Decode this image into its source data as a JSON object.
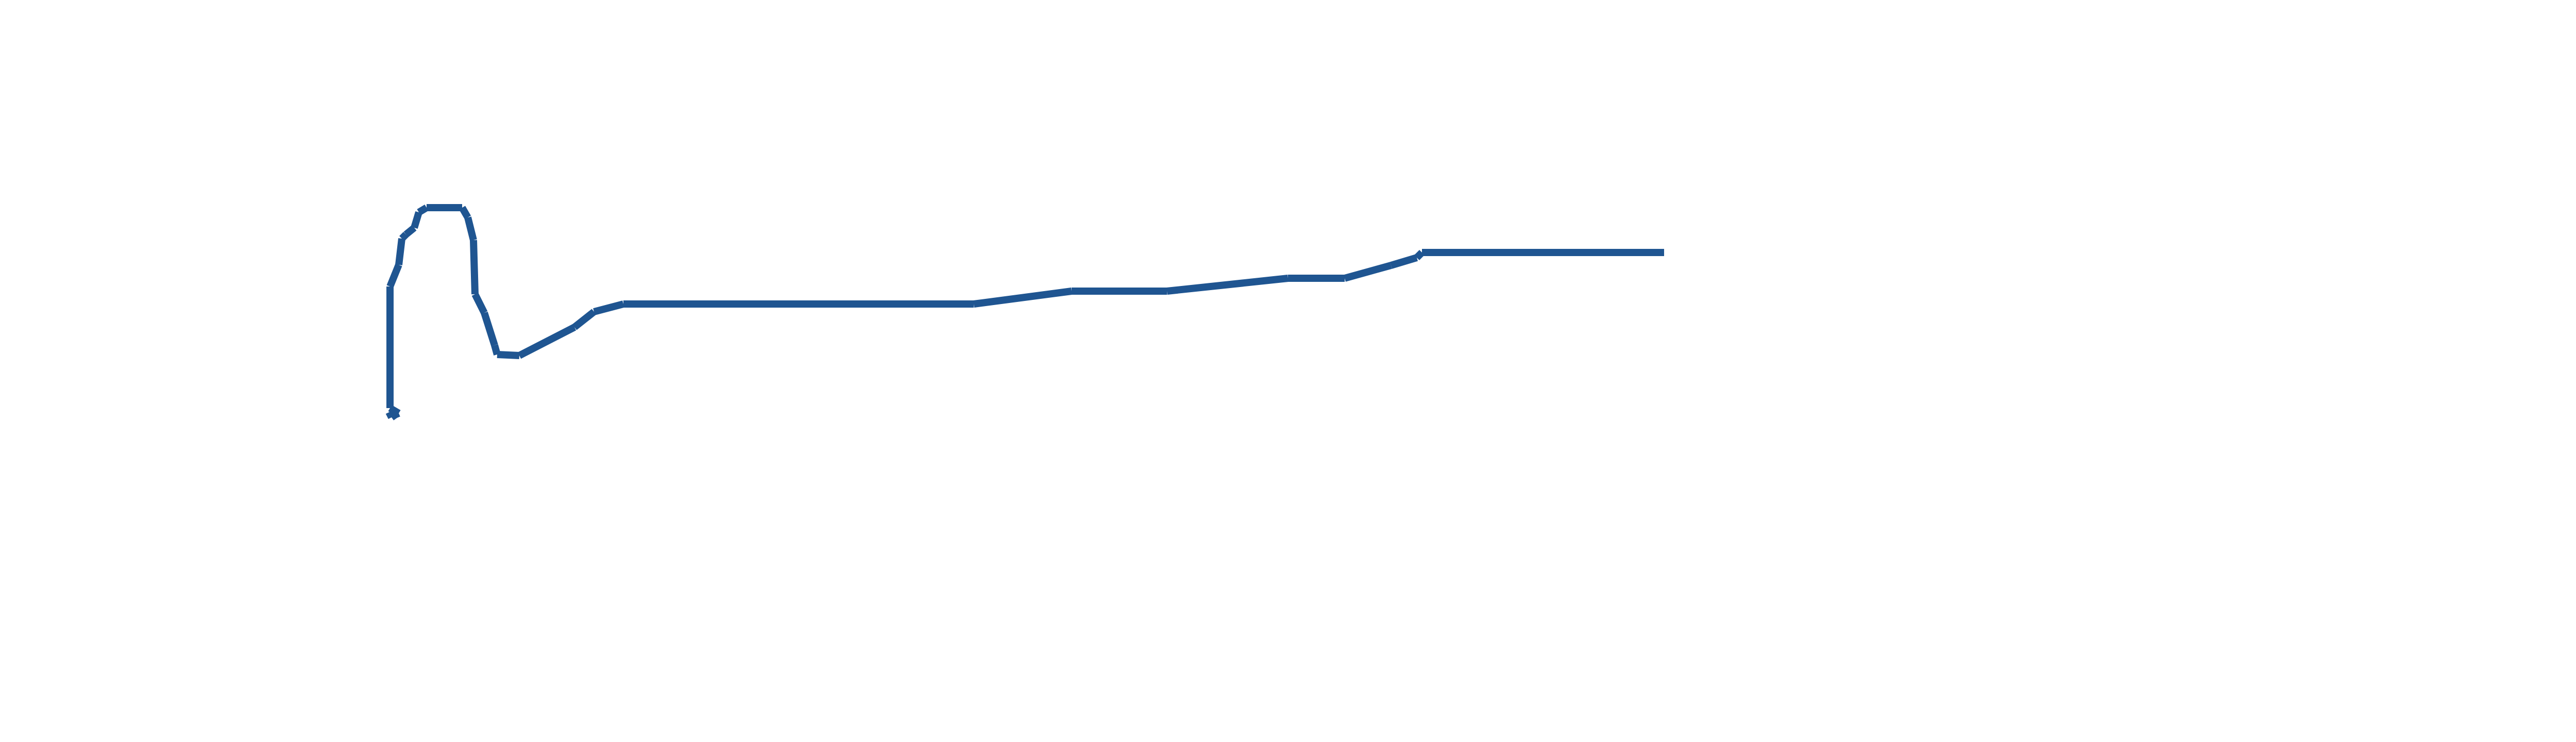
{
  "chart_data": {
    "type": "line",
    "title": "",
    "xlabel": "",
    "ylabel": "",
    "grid": false,
    "axes_visible": false,
    "legend": "none",
    "xlim": [
      745,
      3240
    ],
    "ylim": [
      0,
      1440
    ],
    "series": [
      {
        "color": "#1f5591",
        "points": [
          [
            755,
            800
          ],
          [
            760,
            810
          ],
          [
            767,
            805
          ],
          [
            774,
            802
          ],
          [
            757,
            792
          ],
          [
            757,
            556
          ],
          [
            774,
            514
          ],
          [
            780,
            463
          ],
          [
            788,
            455
          ],
          [
            804,
            442
          ],
          [
            813,
            412
          ],
          [
            828,
            403
          ],
          [
            897,
            403
          ],
          [
            908,
            422
          ],
          [
            919,
            466
          ],
          [
            922,
            571
          ],
          [
            940,
            607
          ],
          [
            960,
            670
          ],
          [
            965,
            688
          ],
          [
            1008,
            690
          ],
          [
            1115,
            635
          ],
          [
            1153,
            605
          ],
          [
            1210,
            590
          ],
          [
            1890,
            590
          ],
          [
            2080,
            565
          ],
          [
            2265,
            565
          ],
          [
            2500,
            540
          ],
          [
            2610,
            540
          ],
          [
            2700,
            515
          ],
          [
            2750,
            500
          ],
          [
            2760,
            490
          ],
          [
            3230,
            490
          ]
        ]
      }
    ]
  }
}
